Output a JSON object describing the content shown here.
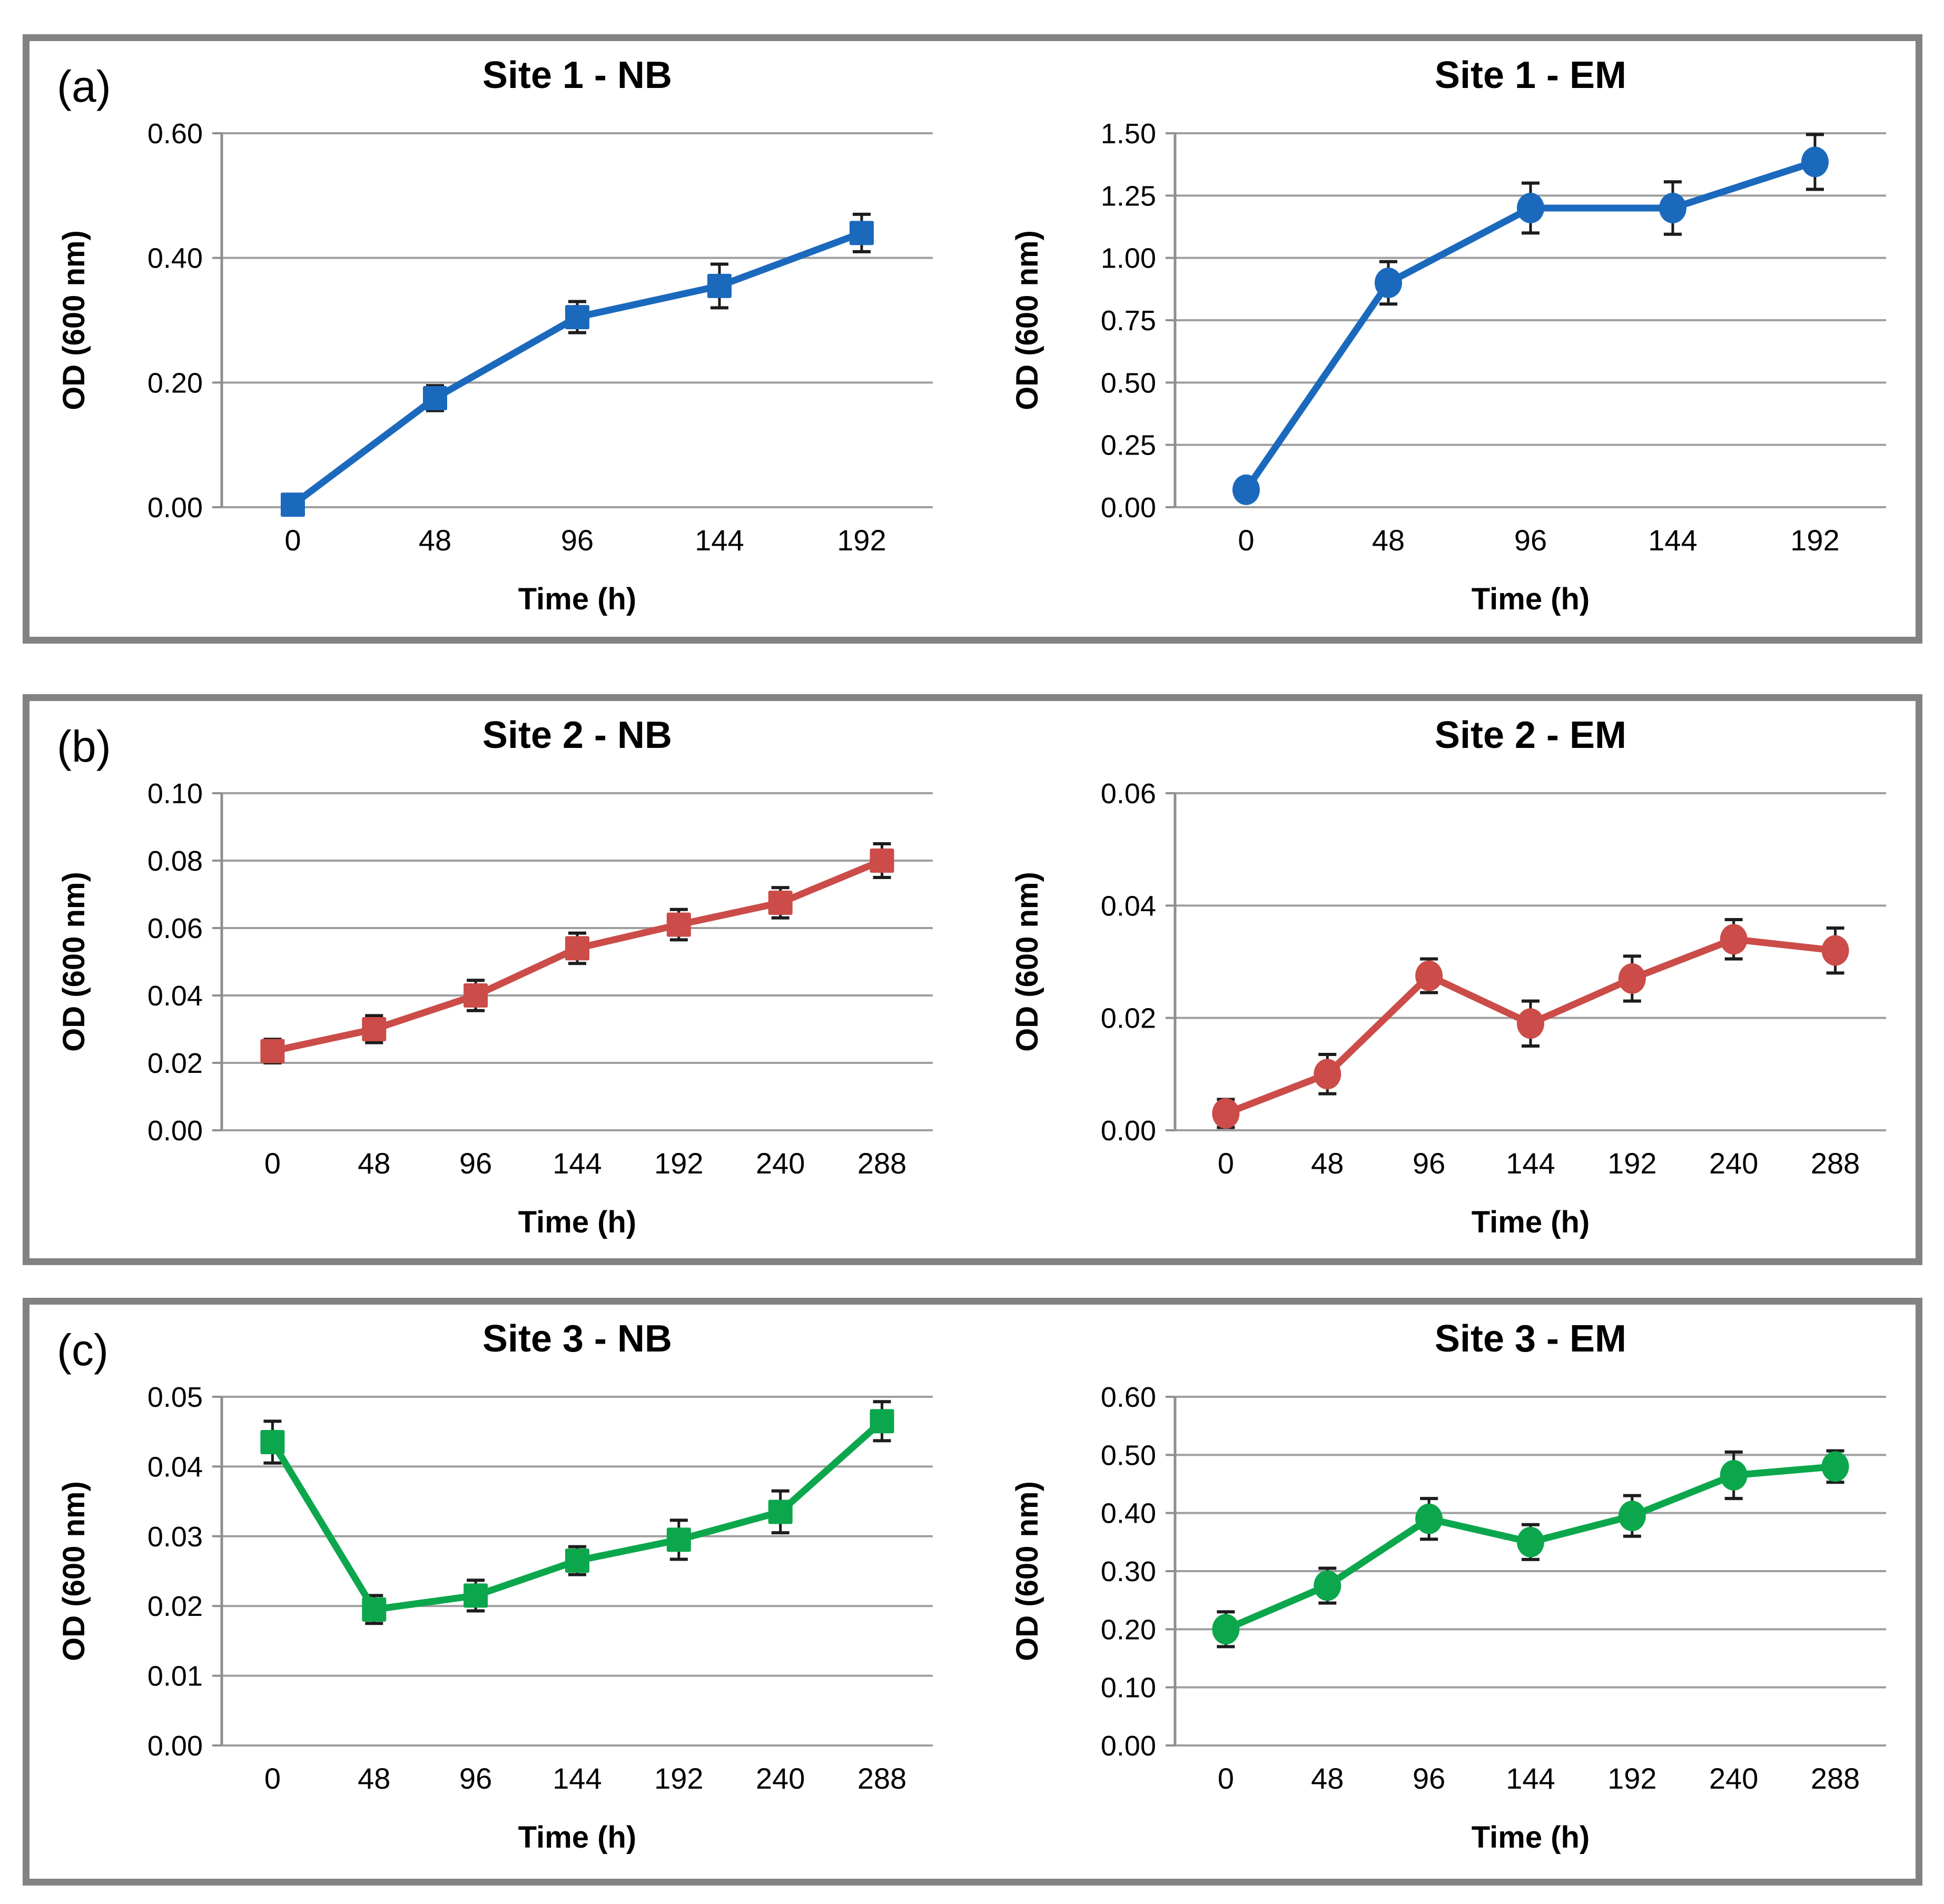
{
  "style": {
    "background": "#FFFFFF",
    "panel_border": "#828282",
    "grid_color": "#9E9E9E",
    "axis_color": "#8F8F8F",
    "error_bar_color": "#1C1C1C",
    "text_color": "#000000",
    "series_blue": "#1B69BD",
    "series_red": "#CB4C48",
    "series_green": "#0CA74C"
  },
  "panels": [
    {
      "label": "(a)"
    },
    {
      "label": "(b)"
    },
    {
      "label": "(c)"
    }
  ],
  "chart_data": [
    {
      "id": "site1-nb",
      "type": "line",
      "title": "Site 1 - NB",
      "xlabel": "Time (h)",
      "ylabel": "OD (600 nm)",
      "marker": "square",
      "color": "#1B69BD",
      "legend": "none",
      "grid": "horizontal",
      "x": [
        "0",
        "48",
        "96",
        "144",
        "192"
      ],
      "y": [
        0.004,
        0.175,
        0.305,
        0.355,
        0.44
      ],
      "err": [
        0,
        0.02,
        0.025,
        0.035,
        0.03
      ],
      "ylim": [
        0,
        0.6
      ],
      "yticks": [
        0,
        0.2,
        0.4,
        0.6
      ],
      "ytick_labels": [
        "0.00",
        "0.20",
        "0.40",
        "0.60"
      ]
    },
    {
      "id": "site1-em",
      "type": "line",
      "title": "Site 1 - EM",
      "xlabel": "Time (h)",
      "ylabel": "OD (600 nm)",
      "marker": "circle",
      "color": "#1B69BD",
      "legend": "none",
      "grid": "horizontal",
      "x": [
        "0",
        "48",
        "96",
        "144",
        "192"
      ],
      "y": [
        0.07,
        0.9,
        1.2,
        1.2,
        1.385
      ],
      "err": [
        0,
        0.085,
        0.1,
        0.105,
        0.11
      ],
      "ylim": [
        0,
        1.5
      ],
      "yticks": [
        0,
        0.25,
        0.5,
        0.75,
        1.0,
        1.25,
        1.5
      ],
      "ytick_labels": [
        "0.00",
        "0.25",
        "0.50",
        "0.75",
        "1.00",
        "1.25",
        "1.50"
      ]
    },
    {
      "id": "site2-nb",
      "type": "line",
      "title": "Site 2 - NB",
      "xlabel": "Time (h)",
      "ylabel": "OD (600 nm)",
      "marker": "square",
      "color": "#CB4C48",
      "legend": "none",
      "grid": "horizontal",
      "x": [
        "0",
        "48",
        "96",
        "144",
        "192",
        "240",
        "288"
      ],
      "y": [
        0.0235,
        0.03,
        0.04,
        0.054,
        0.061,
        0.0675,
        0.08
      ],
      "err": [
        0.0035,
        0.004,
        0.0045,
        0.0045,
        0.0045,
        0.0045,
        0.005
      ],
      "ylim": [
        0,
        0.1
      ],
      "yticks": [
        0,
        0.02,
        0.04,
        0.06,
        0.08,
        0.1
      ],
      "ytick_labels": [
        "0.00",
        "0.02",
        "0.04",
        "0.06",
        "0.08",
        "0.10"
      ]
    },
    {
      "id": "site2-em",
      "type": "line",
      "title": "Site 2 - EM",
      "xlabel": "Time (h)",
      "ylabel": "OD (600 nm)",
      "marker": "circle",
      "color": "#CB4C48",
      "legend": "none",
      "grid": "horizontal",
      "x": [
        "0",
        "48",
        "96",
        "144",
        "192",
        "240",
        "288"
      ],
      "y": [
        0.003,
        0.01,
        0.0275,
        0.019,
        0.027,
        0.034,
        0.032
      ],
      "err": [
        0.0025,
        0.0035,
        0.003,
        0.004,
        0.004,
        0.0035,
        0.004
      ],
      "ylim": [
        0,
        0.06
      ],
      "yticks": [
        0,
        0.02,
        0.04,
        0.06
      ],
      "ytick_labels": [
        "0.00",
        "0.02",
        "0.04",
        "0.06"
      ]
    },
    {
      "id": "site3-nb",
      "type": "line",
      "title": "Site 3 - NB",
      "xlabel": "Time (h)",
      "ylabel": "OD (600 nm)",
      "marker": "square",
      "color": "#0CA74C",
      "legend": "none",
      "grid": "horizontal",
      "x": [
        "0",
        "48",
        "96",
        "144",
        "192",
        "240",
        "288"
      ],
      "y": [
        0.0435,
        0.0195,
        0.0215,
        0.0265,
        0.0295,
        0.0335,
        0.0465
      ],
      "err": [
        0.003,
        0.002,
        0.0022,
        0.002,
        0.0028,
        0.003,
        0.0028
      ],
      "ylim": [
        0,
        0.05
      ],
      "yticks": [
        0,
        0.01,
        0.02,
        0.03,
        0.04,
        0.05
      ],
      "ytick_labels": [
        "0.00",
        "0.01",
        "0.02",
        "0.03",
        "0.04",
        "0.05"
      ]
    },
    {
      "id": "site3-em",
      "type": "line",
      "title": "Site 3 - EM",
      "xlabel": "Time (h)",
      "ylabel": "OD (600 nm)",
      "marker": "circle",
      "color": "#0CA74C",
      "legend": "none",
      "grid": "horizontal",
      "x": [
        "0",
        "48",
        "96",
        "144",
        "192",
        "240",
        "288"
      ],
      "y": [
        0.2,
        0.275,
        0.39,
        0.35,
        0.395,
        0.465,
        0.48
      ],
      "err": [
        0.03,
        0.03,
        0.035,
        0.03,
        0.035,
        0.04,
        0.027
      ],
      "ylim": [
        0,
        0.6
      ],
      "yticks": [
        0,
        0.1,
        0.2,
        0.3,
        0.4,
        0.5,
        0.6
      ],
      "ytick_labels": [
        "0.00",
        "0.10",
        "0.20",
        "0.30",
        "0.40",
        "0.50",
        "0.60"
      ]
    }
  ]
}
